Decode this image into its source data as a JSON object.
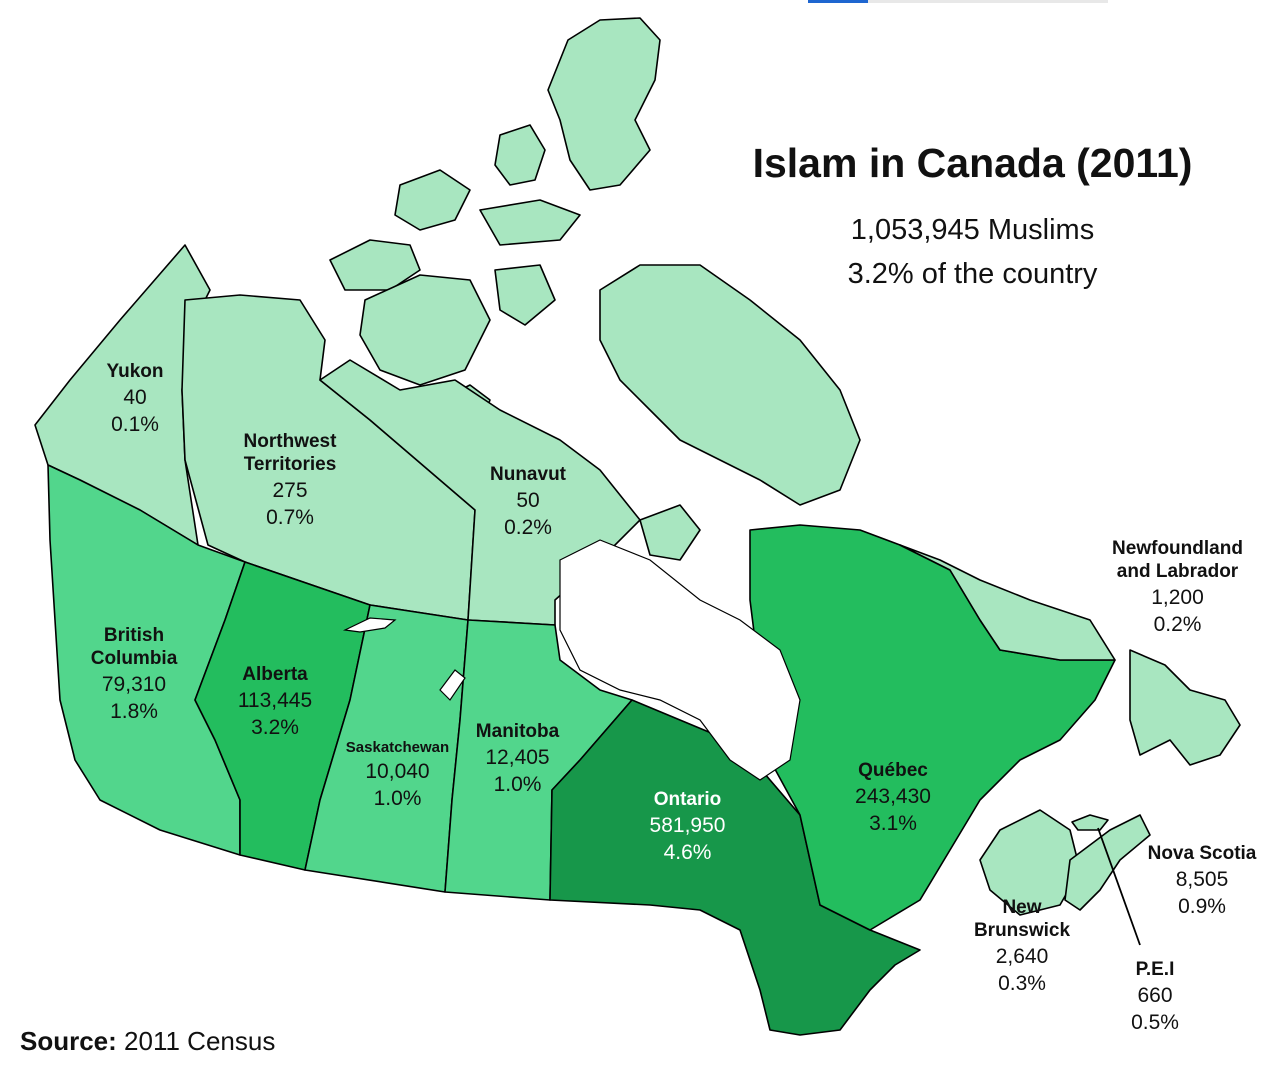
{
  "title": "Islam in Canada (2011)",
  "subtitle_line1": "1,053,945 Muslims",
  "subtitle_line2": "3.2% of the country",
  "source_label": "Source:",
  "source_text": "2011 Census",
  "colors": {
    "lightest": "#a8e6c0",
    "light": "#52d68c",
    "medium": "#23bd5e",
    "dark": "#17974a"
  },
  "regions": {
    "yukon": {
      "name": "Yukon",
      "count": "40",
      "pct": "0.1%"
    },
    "nwt": {
      "name_line1": "Northwest",
      "name_line2": "Territories",
      "count": "275",
      "pct": "0.7%"
    },
    "nunavut": {
      "name": "Nunavut",
      "count": "50",
      "pct": "0.2%"
    },
    "bc": {
      "name_line1": "British",
      "name_line2": "Columbia",
      "count": "79,310",
      "pct": "1.8%"
    },
    "alberta": {
      "name": "Alberta",
      "count": "113,445",
      "pct": "3.2%"
    },
    "saskatchewan": {
      "name": "Saskatchewan",
      "count": "10,040",
      "pct": "1.0%"
    },
    "manitoba": {
      "name": "Manitoba",
      "count": "12,405",
      "pct": "1.0%"
    },
    "ontario": {
      "name": "Ontario",
      "count": "581,950",
      "pct": "4.6%"
    },
    "quebec": {
      "name": "Québec",
      "count": "243,430",
      "pct": "3.1%"
    },
    "nl": {
      "name_line1": "Newfoundland",
      "name_line2": "and Labrador",
      "count": "1,200",
      "pct": "0.2%"
    },
    "ns": {
      "name": "Nova Scotia",
      "count": "8,505",
      "pct": "0.9%"
    },
    "nb": {
      "name_line1": "New",
      "name_line2": "Brunswick",
      "count": "2,640",
      "pct": "0.3%"
    },
    "pei": {
      "name": "P.E.I",
      "count": "660",
      "pct": "0.5%"
    }
  }
}
